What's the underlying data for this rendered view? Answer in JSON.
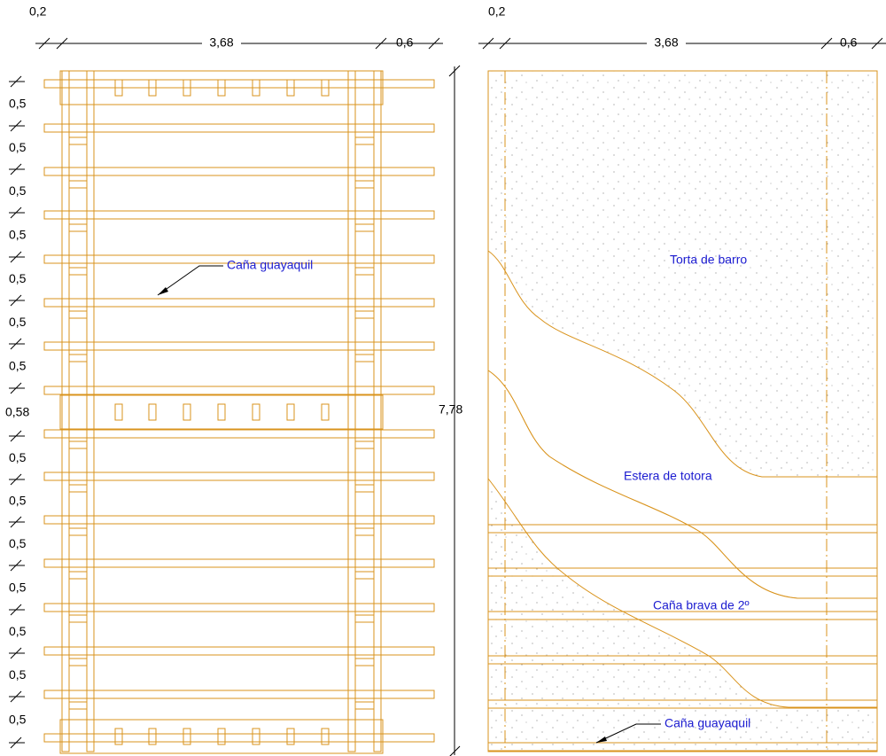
{
  "left_view": {
    "dims_top": [
      "0,2",
      "3,68",
      "0,6"
    ],
    "dims_side": [
      "0,5",
      "0,5",
      "0,5",
      "0,5",
      "0,5",
      "0,5",
      "0,5",
      "0,58",
      "0,5",
      "0,5",
      "0,5",
      "0,5",
      "0,5",
      "0,5",
      "0,5"
    ],
    "total_height": "7,78",
    "label": "Caña guayaquil"
  },
  "right_view": {
    "dims_top": [
      "0,2",
      "3,68",
      "0,6"
    ],
    "labels": [
      "Torta de barro",
      "Estera de totora",
      "Caña brava de 2º",
      "Caña guayaquil"
    ]
  }
}
